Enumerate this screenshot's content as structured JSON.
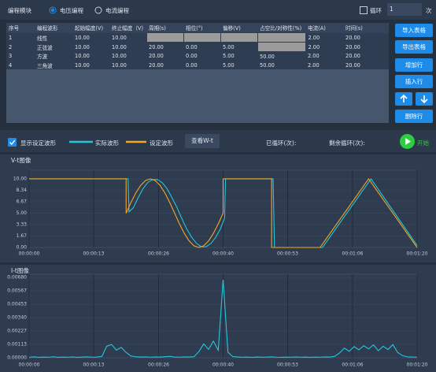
{
  "panel": {
    "title": "编程模块",
    "modes": [
      "电压编程",
      "电流编程"
    ],
    "loop_label": "循环",
    "loop_count": "1",
    "loop_unit": "次"
  },
  "table": {
    "headers": [
      "序号",
      "编程波形",
      "起始幅度(V)",
      "终止幅度（V)",
      "周期(s)",
      "相位(°)",
      "偏移(V)",
      "占空比/对称性(%)",
      "电流(A)",
      "时间(s)"
    ],
    "rows": [
      [
        "1",
        "线性",
        "10.00",
        "10.00",
        null,
        null,
        null,
        null,
        "2.00",
        "20.00"
      ],
      [
        "2",
        "正弦波",
        "10.00",
        "10.00",
        "20.00",
        "0.00",
        "5.00",
        null,
        "2.00",
        "20.00"
      ],
      [
        "3",
        "方波",
        "10.00",
        "10.00",
        "20.00",
        "0.00",
        "5.00",
        "50.00",
        "2.00",
        "20.00"
      ],
      [
        "4",
        "三角波",
        "10.00",
        "10.00",
        "20.00",
        "0.00",
        "5.00",
        "50.00",
        "2.00",
        "20.00"
      ]
    ]
  },
  "buttons": [
    "导入表格",
    "导出表格",
    "增加行",
    "插入行",
    "删除行"
  ],
  "toolbar": {
    "show_set": "显示设定波形",
    "view_button": "查看W-t",
    "cycled": "已循环(次):",
    "remaining": "剩余循环(次):",
    "start": "开始"
  },
  "chart_data": [
    {
      "type": "line",
      "title": "V-t图像",
      "xlim": [
        0,
        80
      ],
      "xticks": [
        {
          "value": 0,
          "label": "00:00:00"
        },
        {
          "value": 13.3,
          "label": "00:00:13"
        },
        {
          "value": 26.7,
          "label": "00:00:26"
        },
        {
          "value": 40,
          "label": "00:00:40"
        },
        {
          "value": 53.3,
          "label": "00:00:53"
        },
        {
          "value": 66.7,
          "label": "00:01:06"
        },
        {
          "value": 80,
          "label": "00:01:20"
        }
      ],
      "ylim": [
        0,
        10.8
      ],
      "yticks": [
        {
          "value": 0,
          "label": "0.00"
        },
        {
          "value": 1.67,
          "label": "1.67"
        },
        {
          "value": 3.33,
          "label": "3.33"
        },
        {
          "value": 5,
          "label": "5.00"
        },
        {
          "value": 6.67,
          "label": "6.67"
        },
        {
          "value": 8.34,
          "label": "8.34"
        },
        {
          "value": 10,
          "label": "10.00"
        }
      ],
      "grid": true,
      "series": [
        {
          "name": "实际波形",
          "color": "#26c6da",
          "x": [
            0,
            20.4,
            20.6,
            21.5,
            22.5,
            23.5,
            24.5,
            25.5,
            26.5,
            27.5,
            28.5,
            29.5,
            30.5,
            31.5,
            32.5,
            33.5,
            34.5,
            35.5,
            36.5,
            37.5,
            38.5,
            39.5,
            40.3,
            40.5,
            50.3,
            50.6,
            60.5,
            70.5,
            80
          ],
          "values": [
            10,
            10,
            5.2,
            5.8,
            7.3,
            8.6,
            9.5,
            9.9,
            9.9,
            9.4,
            8.5,
            7.2,
            5.8,
            4.2,
            2.7,
            1.5,
            0.6,
            0.1,
            0.1,
            0.6,
            1.5,
            2.8,
            4.3,
            10,
            10,
            0,
            0,
            10,
            0.3
          ]
        },
        {
          "name": "设定波形",
          "color": "#f5a623",
          "x": [
            0,
            20,
            20,
            21,
            22,
            23,
            24,
            25,
            26,
            27,
            28,
            29,
            30,
            31,
            32,
            33,
            34,
            35,
            36,
            37,
            38,
            39,
            40,
            40,
            50,
            50,
            60,
            70,
            80
          ],
          "values": [
            10,
            10,
            5,
            6.55,
            7.94,
            9.05,
            9.76,
            10,
            9.76,
            9.05,
            7.94,
            6.55,
            5,
            3.45,
            2.06,
            0.95,
            0.24,
            0,
            0.24,
            0.95,
            2.06,
            3.45,
            5,
            10,
            10,
            0,
            0,
            10,
            0
          ]
        }
      ]
    },
    {
      "type": "line",
      "title": "I-t图像",
      "xlim": [
        0,
        80
      ],
      "xticks": [
        {
          "value": 0,
          "label": "00:00:00"
        },
        {
          "value": 13.3,
          "label": "00:00:13"
        },
        {
          "value": 26.7,
          "label": "00:00:26"
        },
        {
          "value": 40,
          "label": "00:00:40"
        },
        {
          "value": 53.3,
          "label": "00:00:53"
        },
        {
          "value": 66.7,
          "label": "00:01:06"
        },
        {
          "value": 80,
          "label": "00:01:20"
        }
      ],
      "ylim": [
        0,
        0.0068
      ],
      "yticks": [
        {
          "value": 0,
          "label": "0.00000"
        },
        {
          "value": 0.00113,
          "label": "0.00113"
        },
        {
          "value": 0.00227,
          "label": "0.00227"
        },
        {
          "value": 0.0034,
          "label": "0.00340"
        },
        {
          "value": 0.00453,
          "label": "0.00453"
        },
        {
          "value": 0.00567,
          "label": "0.00567"
        },
        {
          "value": 0.0068,
          "label": "0.00680"
        }
      ],
      "grid": true,
      "series": [
        {
          "color": "#26c6da",
          "x": [
            0,
            1,
            2,
            3,
            4,
            5,
            6,
            7,
            8,
            9,
            10,
            11,
            12,
            13,
            14,
            15,
            16,
            17,
            18,
            19,
            20,
            21,
            22,
            23,
            24,
            25,
            26,
            27,
            28,
            29,
            30,
            31,
            32,
            33,
            34,
            35,
            36,
            37,
            38,
            39,
            40,
            41,
            42,
            43,
            44,
            45,
            46,
            47,
            48,
            49,
            50,
            51,
            52,
            53,
            54,
            55,
            56,
            57,
            58,
            59,
            60,
            61,
            62,
            63,
            64,
            65,
            66,
            67,
            68,
            69,
            70,
            71,
            72,
            73,
            74,
            75,
            76,
            77,
            78,
            79,
            80
          ],
          "values": [
            5e-05,
            8e-05,
            4e-05,
            6e-05,
            5e-05,
            9e-05,
            4e-05,
            6e-05,
            5e-05,
            7e-05,
            4e-05,
            6e-05,
            8e-05,
            5e-05,
            6e-05,
            0.00012,
            0.00098,
            0.00112,
            0.00065,
            0.00088,
            0.00045,
            0.00015,
            9e-05,
            6e-05,
            8e-05,
            5e-05,
            7e-05,
            6e-05,
            9e-05,
            0.00012,
            6e-05,
            5e-05,
            8e-05,
            6e-05,
            9e-05,
            0.00052,
            0.00118,
            0.00071,
            0.00142,
            0.00064,
            0.0066,
            0.00047,
            0.0001,
            7e-05,
            5e-05,
            6e-05,
            4e-05,
            7e-05,
            5e-05,
            6e-05,
            8e-05,
            5e-05,
            4e-05,
            6e-05,
            5e-05,
            7e-05,
            5e-05,
            6e-05,
            4e-05,
            6e-05,
            5e-05,
            7e-05,
            6e-05,
            0.00012,
            0.0004,
            0.00082,
            0.00055,
            0.00095,
            0.00068,
            0.00102,
            0.00075,
            0.0011,
            0.0006,
            0.00098,
            0.0007,
            0.00112,
            0.00045,
            0.00018,
            8e-05,
            6e-05,
            5e-05
          ]
        }
      ]
    }
  ]
}
